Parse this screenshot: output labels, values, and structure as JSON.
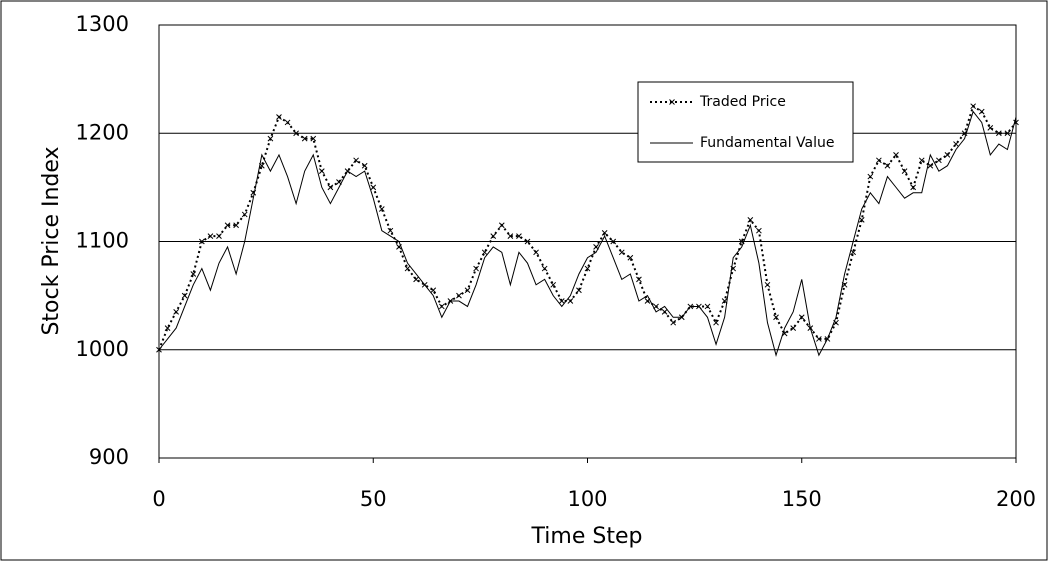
{
  "chart_data": {
    "type": "line",
    "x_label": "Time Step",
    "y_label": "Stock Price Index",
    "x": [
      0,
      2,
      4,
      6,
      8,
      10,
      12,
      14,
      16,
      18,
      20,
      22,
      24,
      26,
      28,
      30,
      32,
      34,
      36,
      38,
      40,
      42,
      44,
      46,
      48,
      50,
      52,
      54,
      56,
      58,
      60,
      62,
      64,
      66,
      68,
      70,
      72,
      74,
      76,
      78,
      80,
      82,
      84,
      86,
      88,
      90,
      92,
      94,
      96,
      98,
      100,
      102,
      104,
      106,
      108,
      110,
      112,
      114,
      116,
      118,
      120,
      122,
      124,
      126,
      128,
      130,
      132,
      134,
      136,
      138,
      140,
      142,
      144,
      146,
      148,
      150,
      152,
      154,
      156,
      158,
      160,
      162,
      164,
      166,
      168,
      170,
      172,
      174,
      176,
      178,
      180,
      182,
      184,
      186,
      188,
      190,
      192,
      194,
      196,
      198,
      200
    ],
    "series": [
      {
        "name": "Traded Price",
        "color": "#000000",
        "style": "dotted",
        "marker": "x",
        "values": [
          1000,
          1020,
          1035,
          1050,
          1070,
          1100,
          1105,
          1105,
          1115,
          1115,
          1125,
          1145,
          1170,
          1195,
          1215,
          1210,
          1200,
          1195,
          1195,
          1165,
          1150,
          1155,
          1165,
          1175,
          1170,
          1150,
          1130,
          1110,
          1095,
          1075,
          1065,
          1060,
          1055,
          1040,
          1045,
          1050,
          1055,
          1075,
          1090,
          1105,
          1115,
          1105,
          1105,
          1100,
          1090,
          1075,
          1060,
          1045,
          1045,
          1055,
          1075,
          1095,
          1108,
          1100,
          1090,
          1085,
          1065,
          1045,
          1040,
          1035,
          1025,
          1030,
          1040,
          1040,
          1040,
          1025,
          1045,
          1075,
          1100,
          1120,
          1110,
          1060,
          1030,
          1015,
          1020,
          1030,
          1020,
          1010,
          1010,
          1025,
          1060,
          1090,
          1120,
          1160,
          1175,
          1170,
          1180,
          1165,
          1150,
          1175,
          1170,
          1175,
          1180,
          1190,
          1200,
          1225,
          1220,
          1205,
          1200,
          1200,
          1210
        ]
      },
      {
        "name": "Fundamental Value",
        "color": "#000000",
        "style": "solid",
        "values": [
          1000,
          1010,
          1020,
          1040,
          1060,
          1075,
          1055,
          1080,
          1095,
          1070,
          1100,
          1140,
          1180,
          1165,
          1180,
          1160,
          1135,
          1165,
          1180,
          1150,
          1135,
          1150,
          1165,
          1160,
          1165,
          1140,
          1110,
          1105,
          1100,
          1080,
          1070,
          1060,
          1050,
          1030,
          1045,
          1045,
          1040,
          1060,
          1085,
          1095,
          1090,
          1060,
          1090,
          1080,
          1060,
          1065,
          1050,
          1040,
          1050,
          1070,
          1085,
          1090,
          1105,
          1085,
          1065,
          1070,
          1045,
          1050,
          1035,
          1040,
          1030,
          1030,
          1040,
          1040,
          1030,
          1005,
          1030,
          1085,
          1095,
          1115,
          1080,
          1025,
          995,
          1020,
          1035,
          1065,
          1020,
          995,
          1010,
          1030,
          1070,
          1100,
          1130,
          1145,
          1135,
          1160,
          1150,
          1140,
          1145,
          1145,
          1180,
          1165,
          1170,
          1185,
          1195,
          1220,
          1210,
          1180,
          1190,
          1185,
          1215
        ]
      }
    ],
    "xlim": [
      0,
      200
    ],
    "xticks": [
      0,
      50,
      100,
      150,
      200
    ],
    "ylim": [
      900,
      1300
    ],
    "yticks": [
      900,
      1000,
      1100,
      1200,
      1300
    ],
    "grid": true,
    "legend": "upper right"
  }
}
